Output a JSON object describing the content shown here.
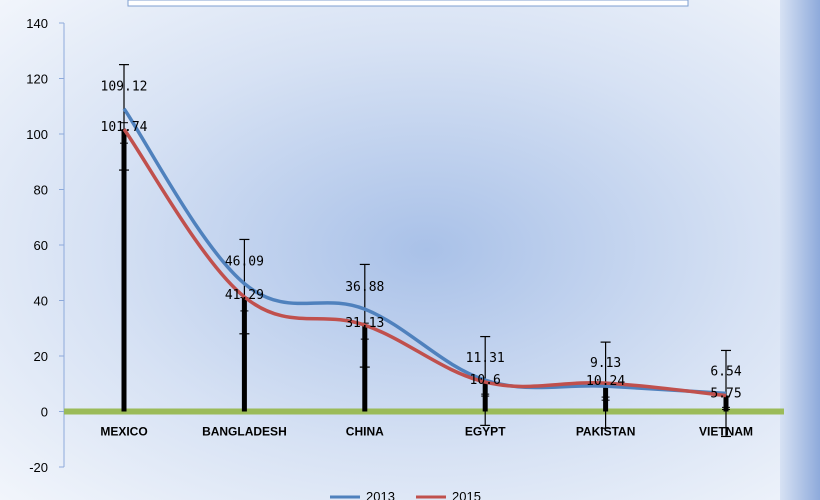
{
  "chart_data": {
    "type": "line",
    "title": "",
    "xlabel": "",
    "ylabel": "",
    "ylim": [
      -20,
      140
    ],
    "yticks": [
      -20,
      0,
      20,
      40,
      60,
      80,
      100,
      120,
      140
    ],
    "categories": [
      "MEXICO",
      "BANGLADESH",
      "CHINA",
      "EGYPT",
      "PAKISTAN",
      "VIETNAM"
    ],
    "series": [
      {
        "name": "2013",
        "color": "#4f81bd",
        "values": [
          109.12,
          46.09,
          36.88,
          11.31,
          9.13,
          6.54
        ],
        "labels": [
          "109.12",
          "46.09",
          "36.88",
          "11.31",
          "9.13",
          "6.54"
        ]
      },
      {
        "name": "2015",
        "color": "#c0504d",
        "values": [
          101.74,
          41.29,
          31.13,
          10.6,
          10.24,
          5.75
        ],
        "labels": [
          "101.74",
          "41.29",
          "31.13",
          "10.6",
          "10.24",
          "5.75"
        ]
      }
    ],
    "error_bars": [
      {
        "upper": 125,
        "lower": 87
      },
      {
        "upper": 62,
        "lower": 28
      },
      {
        "upper": 53,
        "lower": 16
      },
      {
        "upper": 27,
        "lower": -5
      },
      {
        "upper": 25,
        "lower": -6
      },
      {
        "upper": 22,
        "lower": -9
      }
    ],
    "legend_position": "bottom",
    "zero_line_color": "#9bbb59",
    "grid": false
  }
}
